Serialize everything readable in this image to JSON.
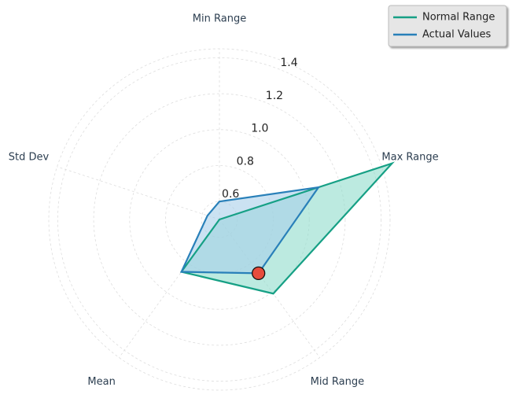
{
  "chart_data": {
    "type": "radar",
    "categories": [
      "Min Range",
      "Max Range",
      "Mid Range",
      "Mean",
      "Std Dev"
    ],
    "series": [
      {
        "name": "Normal Range",
        "color": "#16a085",
        "fill": "#8fdccb",
        "values": [
          0.5,
          1.51,
          1.01,
          0.86,
          0.5
        ]
      },
      {
        "name": "Actual Values",
        "color": "#2980b9",
        "fill": "#a9cfea",
        "values": [
          0.6,
          1.08,
          0.87,
          0.86,
          0.57
        ]
      }
    ],
    "ylim": [
      0.5,
      1.45
    ],
    "yticks": [
      0.6,
      0.8,
      {
        "value": 1,
        "label": "1.0"
      },
      1.2,
      1.4
    ],
    "grid": true,
    "legend": "upper right",
    "marker": {
      "series": 1,
      "index": 2,
      "color": "#e74c3c"
    }
  }
}
